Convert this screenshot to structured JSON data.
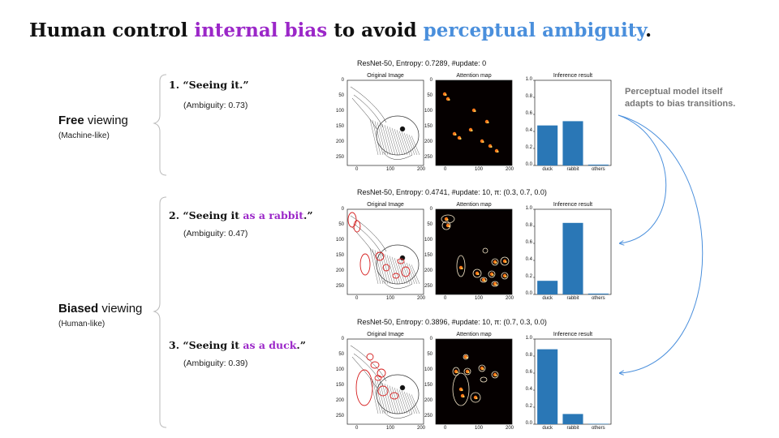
{
  "title": {
    "prefix": "Human control ",
    "accent1": "internal bias",
    "middle": " to avoid ",
    "accent2": "perceptual ambiguity",
    "suffix": "."
  },
  "colors": {
    "purple": "#9b27c8",
    "blue": "#4a8fdc",
    "bar": "#2a77b6",
    "gray_note": "#777777",
    "arrow": "#4a8fdc"
  },
  "modes": {
    "free": {
      "bold": "Free",
      "rest": " viewing",
      "sub": "(Machine-like)"
    },
    "biased": {
      "bold": "Biased",
      "rest": " viewing",
      "sub": "(Human-like)"
    }
  },
  "steps": [
    {
      "number": "1.",
      "text_pre": "“Seeing it.”",
      "accent": "",
      "text_post": "",
      "ambiguity": "(Ambiguity: 0.73)"
    },
    {
      "number": "2.",
      "text_pre": "“Seeing it ",
      "accent": "as a rabbit",
      "text_post": ".”",
      "ambiguity": "(Ambiguity: 0.47)"
    },
    {
      "number": "3.",
      "text_pre": "“Seeing it ",
      "accent": "as a duck",
      "text_post": ".”",
      "ambiguity": "(Ambiguity: 0.39)"
    }
  ],
  "rows": [
    {
      "header": "ResNet-50,  Entropy: 0.7289,  #update: 0"
    },
    {
      "header": "ResNet-50,  Entropy: 0.4741,  #update: 10,  π: (0.3, 0.7, 0.0)"
    },
    {
      "header": "ResNet-50,  Entropy: 0.3896,  #update: 10,  π: (0.7, 0.3, 0.0)"
    }
  ],
  "panel_titles": {
    "original": "Original Image",
    "attention": "Attention map",
    "inference": "Inference result"
  },
  "image_axis": {
    "x_ticks": [
      "0",
      "100",
      "200"
    ],
    "y_ticks": [
      "0",
      "50",
      "100",
      "150",
      "200",
      "250"
    ]
  },
  "chart_data": [
    {
      "type": "bar",
      "title": "Inference result",
      "categories": [
        "duck",
        "rabbit",
        "others"
      ],
      "values": [
        0.47,
        0.52,
        0.01
      ],
      "ylim": [
        0,
        1.0
      ],
      "y_ticks": [
        "0.0",
        "0.2",
        "0.4",
        "0.6",
        "0.8",
        "1.0"
      ]
    },
    {
      "type": "bar",
      "title": "Inference result",
      "categories": [
        "duck",
        "rabbit",
        "others"
      ],
      "values": [
        0.16,
        0.84,
        0.01
      ],
      "ylim": [
        0,
        1.0
      ],
      "y_ticks": [
        "0.0",
        "0.2",
        "0.4",
        "0.6",
        "0.8",
        "1.0"
      ]
    },
    {
      "type": "bar",
      "title": "Inference result",
      "categories": [
        "duck",
        "rabbit",
        "others"
      ],
      "values": [
        0.88,
        0.12,
        0.005
      ],
      "ylim": [
        0,
        1.0
      ],
      "y_ticks": [
        "0.0",
        "0.2",
        "0.4",
        "0.6",
        "0.8",
        "1.0"
      ]
    }
  ],
  "note": {
    "line1": "Perceptual model itself",
    "line2": "adapts to bias transitions."
  }
}
